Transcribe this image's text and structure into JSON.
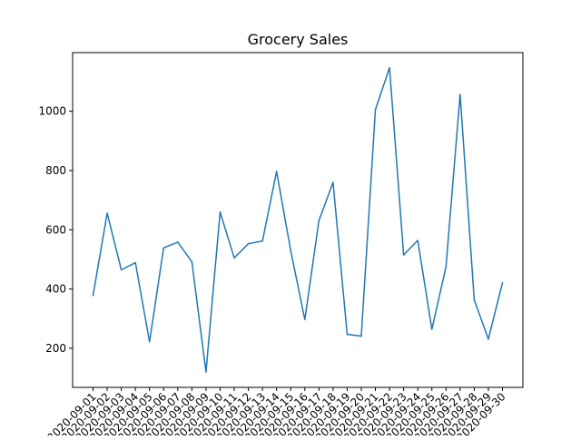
{
  "chart_data": {
    "type": "line",
    "title": "Grocery Sales",
    "xlabel": "",
    "ylabel": "",
    "x": [
      "2020-09-01",
      "2020-09-02",
      "2020-09-03",
      "2020-09-04",
      "2020-09-05",
      "2020-09-06",
      "2020-09-07",
      "2020-09-08",
      "2020-09-09",
      "2020-09-10",
      "2020-09-11",
      "2020-09-12",
      "2020-09-13",
      "2020-09-14",
      "2020-09-15",
      "2020-09-16",
      "2020-09-17",
      "2020-09-18",
      "2020-09-19",
      "2020-09-20",
      "2020-09-21",
      "2020-09-22",
      "2020-09-23",
      "2020-09-24",
      "2020-09-25",
      "2020-09-26",
      "2020-09-27",
      "2020-09-28",
      "2020-09-29",
      "2020-09-30"
    ],
    "series": [
      {
        "values": [
          378,
          656,
          465,
          489,
          222,
          539,
          558,
          492,
          120,
          660,
          505,
          553,
          562,
          797,
          530,
          297,
          631,
          760,
          247,
          241,
          1005,
          1147,
          515,
          564,
          264,
          475,
          1057,
          363,
          231,
          421
        ],
        "color": "#1f77b4"
      }
    ],
    "yticks": [
      200,
      400,
      600,
      800,
      1000
    ],
    "ylim": [
      68,
      1198
    ],
    "grid": false,
    "legend": "none"
  }
}
